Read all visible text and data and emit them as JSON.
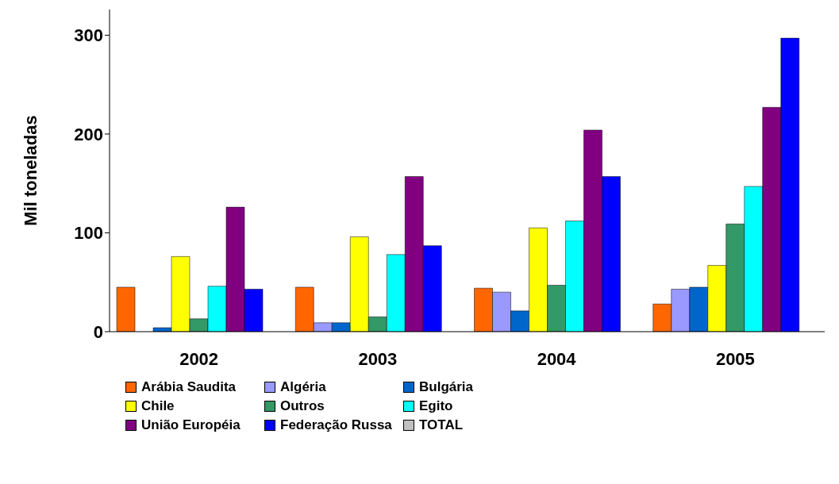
{
  "chart_data": {
    "type": "bar",
    "ylabel": "Mil toneladas",
    "categories": [
      "2002",
      "2003",
      "2004",
      "2005"
    ],
    "series": [
      {
        "name": "Arábia Saudita",
        "color": "#ff6600",
        "values": [
          45,
          45,
          44,
          28
        ]
      },
      {
        "name": "Algéria",
        "color": "#9999ff",
        "values": [
          0,
          9,
          40,
          43
        ]
      },
      {
        "name": "Bulgária",
        "color": "#0066cc",
        "values": [
          4,
          9,
          21,
          45
        ]
      },
      {
        "name": "Chile",
        "color": "#ffff00",
        "values": [
          76,
          96,
          105,
          67
        ]
      },
      {
        "name": "Outros",
        "color": "#339966",
        "values": [
          13,
          15,
          47,
          109
        ]
      },
      {
        "name": "Egito",
        "color": "#00ffff",
        "values": [
          46,
          78,
          112,
          147
        ]
      },
      {
        "name": "União Européia",
        "color": "#800080",
        "values": [
          126,
          157,
          204,
          227
        ]
      },
      {
        "name": "Federação Russa",
        "color": "#0000ff",
        "values": [
          43,
          87,
          157,
          297
        ]
      },
      {
        "name": "TOTAL",
        "color": "#c0c0c0",
        "values": [
          null,
          null,
          null,
          null
        ]
      }
    ],
    "ylim": [
      0,
      326
    ],
    "yticks": [
      0,
      100,
      200,
      300
    ],
    "grid": false,
    "legend": "bottom"
  }
}
